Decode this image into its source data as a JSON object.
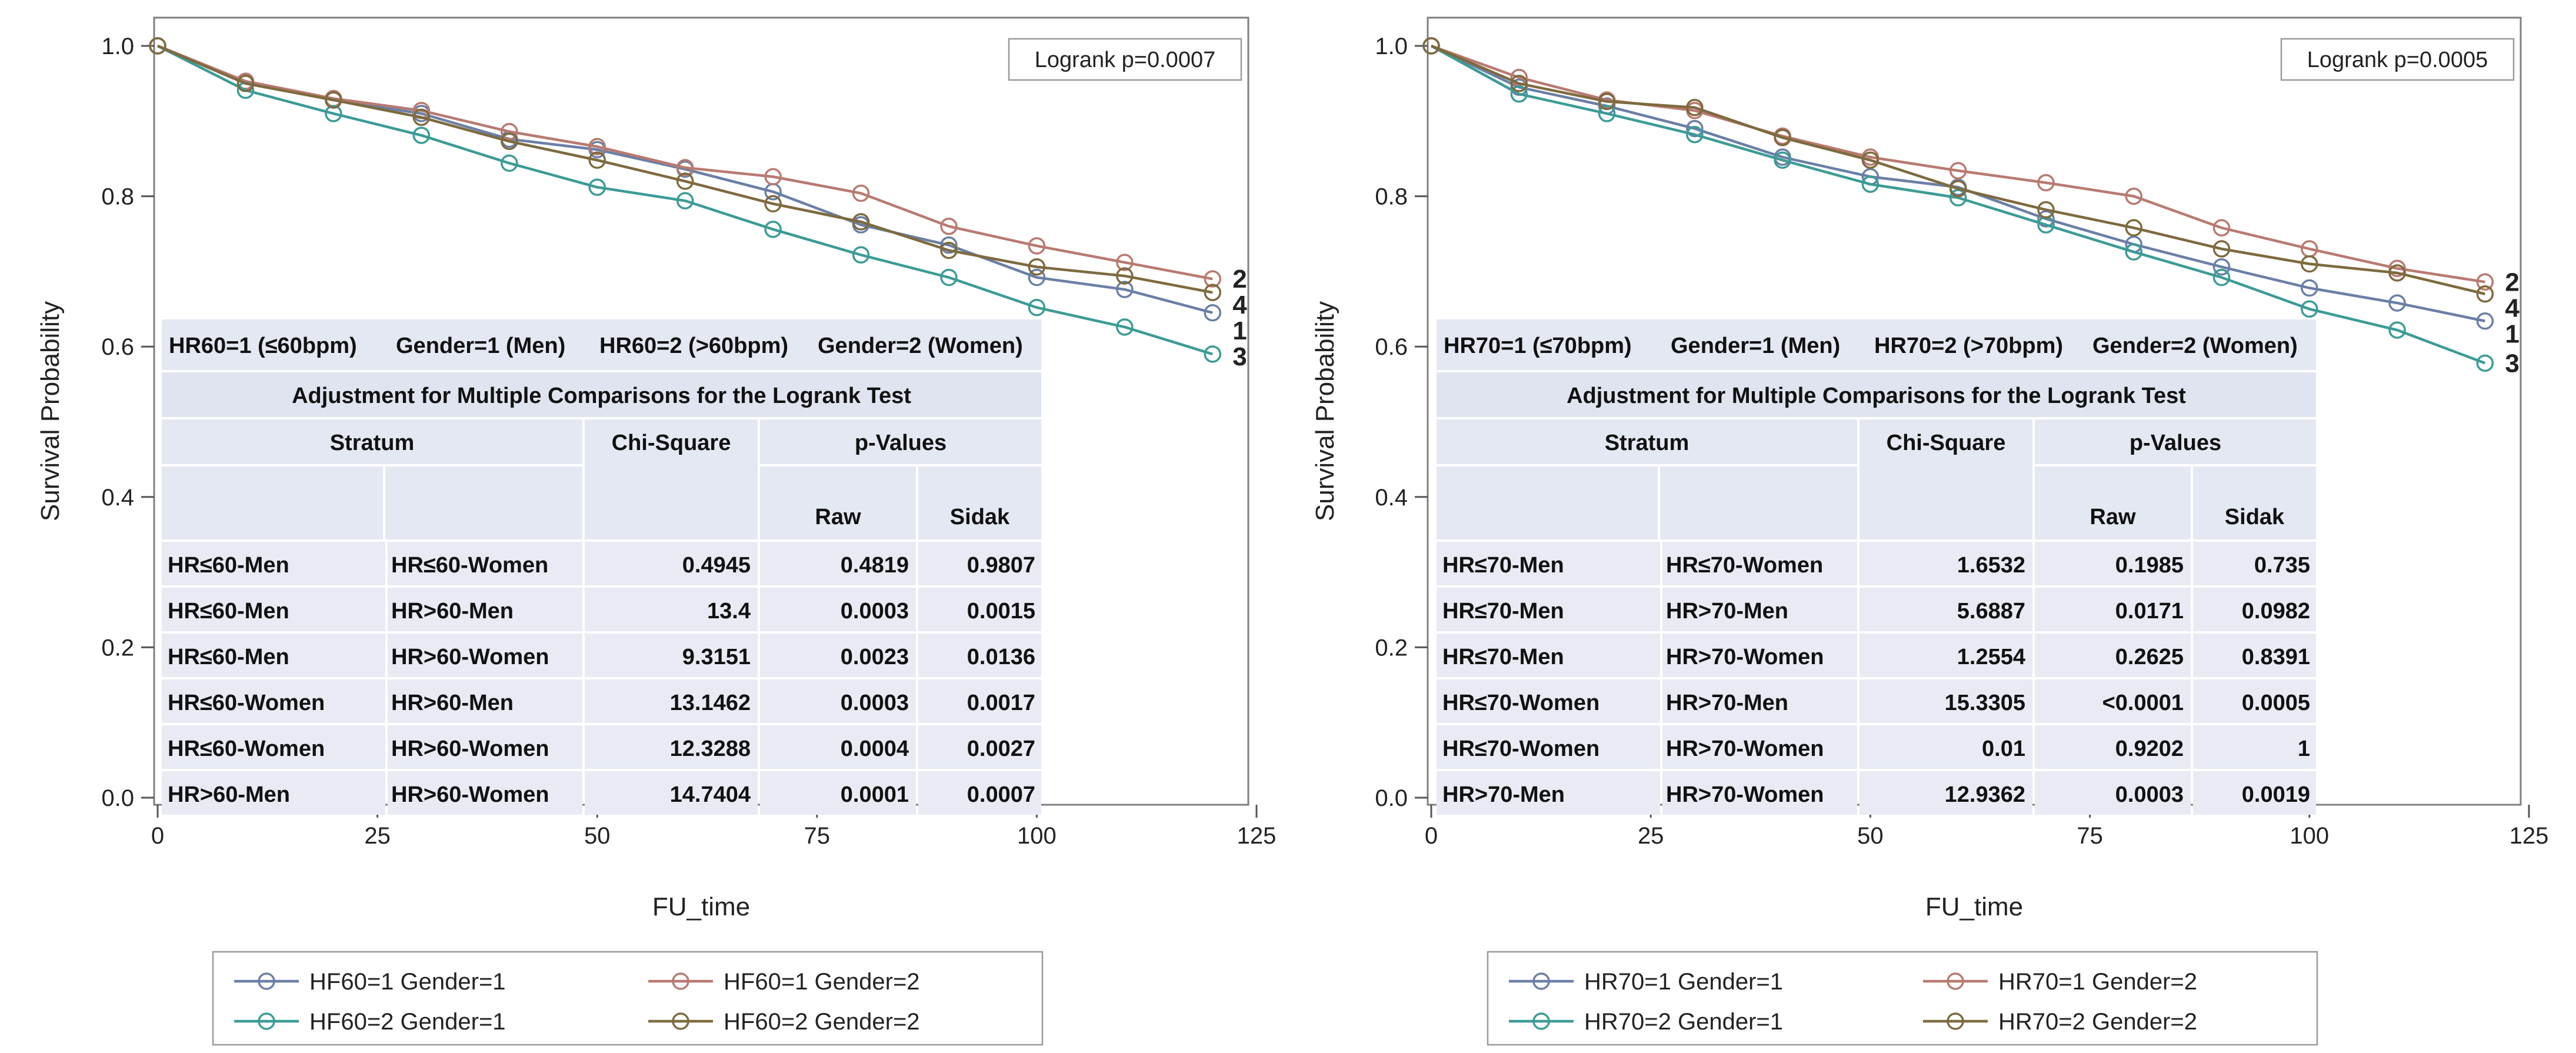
{
  "chart_data": [
    {
      "type": "line",
      "xlabel": "FU_time",
      "ylabel": "Survival Probability",
      "xlim": [
        0,
        125
      ],
      "ylim": [
        0,
        1.0
      ],
      "x_ticks": [
        "0",
        "25",
        "50",
        "75",
        "100",
        "125"
      ],
      "y_ticks": [
        "0.0",
        "0.2",
        "0.4",
        "0.6",
        "0.8",
        "1.0"
      ],
      "x": [
        0,
        10,
        20,
        30,
        40,
        50,
        60,
        70,
        80,
        90,
        100,
        110,
        120
      ],
      "annotation": "Logrank p=0.0007",
      "legend": [
        "HF60=1 Gender=1",
        "HF60=1 Gender=2",
        "HF60=2 Gender=1",
        "HF60=2 Gender=2"
      ],
      "series": [
        {
          "name": "HF60=1 Gender=1",
          "end_label": "1",
          "color": "#6a7fa6",
          "values": [
            1.0,
            0.952,
            0.928,
            0.91,
            0.876,
            0.862,
            0.836,
            0.806,
            0.762,
            0.735,
            0.692,
            0.676,
            0.645
          ]
        },
        {
          "name": "HF60=1 Gender=2",
          "end_label": "2",
          "color": "#b87a70",
          "values": [
            1.0,
            0.953,
            0.93,
            0.914,
            0.886,
            0.866,
            0.838,
            0.826,
            0.804,
            0.76,
            0.734,
            0.712,
            0.69
          ]
        },
        {
          "name": "HF60=2 Gender=1",
          "end_label": "3",
          "color": "#3b9b96",
          "values": [
            1.0,
            0.941,
            0.91,
            0.881,
            0.844,
            0.812,
            0.794,
            0.756,
            0.722,
            0.692,
            0.652,
            0.626,
            0.59
          ]
        },
        {
          "name": "HF60=2 Gender=2",
          "end_label": "4",
          "color": "#7d6a3e",
          "values": [
            1.0,
            0.95,
            0.928,
            0.905,
            0.873,
            0.848,
            0.82,
            0.79,
            0.766,
            0.728,
            0.706,
            0.694,
            0.672
          ]
        }
      ],
      "inset": {
        "header_cells": [
          "HR60=1 (≤60bpm)",
          "Gender=1 (Men)",
          "HR60=2 (>60bpm)",
          "Gender=2 (Women)"
        ],
        "title": "Adjustment for Multiple Comparisons for the Logrank Test",
        "col_stratum": "Stratum",
        "col_chisq": "Chi-Square",
        "col_pvalues": "p-Values",
        "col_raw": "Raw",
        "col_sidak": "Sidak",
        "rows": [
          [
            "HR≤60-Men",
            "HR≤60-Women",
            "0.4945",
            "0.4819",
            "0.9807"
          ],
          [
            "HR≤60-Men",
            "HR>60-Men",
            "13.4",
            "0.0003",
            "0.0015"
          ],
          [
            "HR≤60-Men",
            "HR>60-Women",
            "9.3151",
            "0.0023",
            "0.0136"
          ],
          [
            "HR≤60-Women",
            "HR>60-Men",
            "13.1462",
            "0.0003",
            "0.0017"
          ],
          [
            "HR≤60-Women",
            "HR>60-Women",
            "12.3288",
            "0.0004",
            "0.0027"
          ],
          [
            "HR>60-Men",
            "HR>60-Women",
            "14.7404",
            "0.0001",
            "0.0007"
          ]
        ]
      }
    },
    {
      "type": "line",
      "xlabel": "FU_time",
      "ylabel": "Survival Probability",
      "xlim": [
        0,
        125
      ],
      "ylim": [
        0,
        1.0
      ],
      "x_ticks": [
        "0",
        "25",
        "50",
        "75",
        "100",
        "125"
      ],
      "y_ticks": [
        "0.0",
        "0.2",
        "0.4",
        "0.6",
        "0.8",
        "1.0"
      ],
      "x": [
        0,
        10,
        20,
        30,
        40,
        50,
        60,
        70,
        80,
        90,
        100,
        110,
        120
      ],
      "annotation": "Logrank p=0.0005",
      "legend": [
        "HR70=1 Gender=1",
        "HR70=1 Gender=2",
        "HR70=2 Gender=1",
        "HR70=2 Gender=2"
      ],
      "series": [
        {
          "name": "HR70=1 Gender=1",
          "end_label": "1",
          "color": "#6a7fa6",
          "values": [
            1.0,
            0.945,
            0.92,
            0.89,
            0.852,
            0.826,
            0.812,
            0.77,
            0.736,
            0.706,
            0.678,
            0.658,
            0.634
          ]
        },
        {
          "name": "HR70=1 Gender=2",
          "end_label": "2",
          "color": "#b87a70",
          "values": [
            1.0,
            0.958,
            0.928,
            0.914,
            0.88,
            0.852,
            0.834,
            0.818,
            0.8,
            0.758,
            0.73,
            0.704,
            0.686
          ]
        },
        {
          "name": "HR70=2 Gender=1",
          "end_label": "3",
          "color": "#3b9b96",
          "values": [
            1.0,
            0.936,
            0.91,
            0.882,
            0.848,
            0.816,
            0.798,
            0.762,
            0.726,
            0.692,
            0.65,
            0.622,
            0.578
          ]
        },
        {
          "name": "HR70=2 Gender=2",
          "end_label": "4",
          "color": "#7d6a3e",
          "values": [
            1.0,
            0.95,
            0.926,
            0.918,
            0.878,
            0.848,
            0.81,
            0.782,
            0.758,
            0.73,
            0.71,
            0.698,
            0.67
          ]
        }
      ],
      "inset": {
        "header_cells": [
          "HR70=1 (≤70bpm)",
          "Gender=1 (Men)",
          "HR70=2 (>70bpm)",
          "Gender=2 (Women)"
        ],
        "title": "Adjustment for Multiple Comparisons for the Logrank Test",
        "col_stratum": "Stratum",
        "col_chisq": "Chi-Square",
        "col_pvalues": "p-Values",
        "col_raw": "Raw",
        "col_sidak": "Sidak",
        "rows": [
          [
            "HR≤70-Men",
            "HR≤70-Women",
            "1.6532",
            "0.1985",
            "0.735"
          ],
          [
            "HR≤70-Men",
            "HR>70-Men",
            "5.6887",
            "0.0171",
            "0.0982"
          ],
          [
            "HR≤70-Men",
            "HR>70-Women",
            "1.2554",
            "0.2625",
            "0.8391"
          ],
          [
            "HR≤70-Women",
            "HR>70-Men",
            "15.3305",
            "<0.0001",
            "0.0005"
          ],
          [
            "HR≤70-Women",
            "HR>70-Women",
            "0.01",
            "0.9202",
            "1"
          ],
          [
            "HR>70-Men",
            "HR>70-Women",
            "12.9362",
            "0.0003",
            "0.0019"
          ]
        ]
      }
    }
  ]
}
